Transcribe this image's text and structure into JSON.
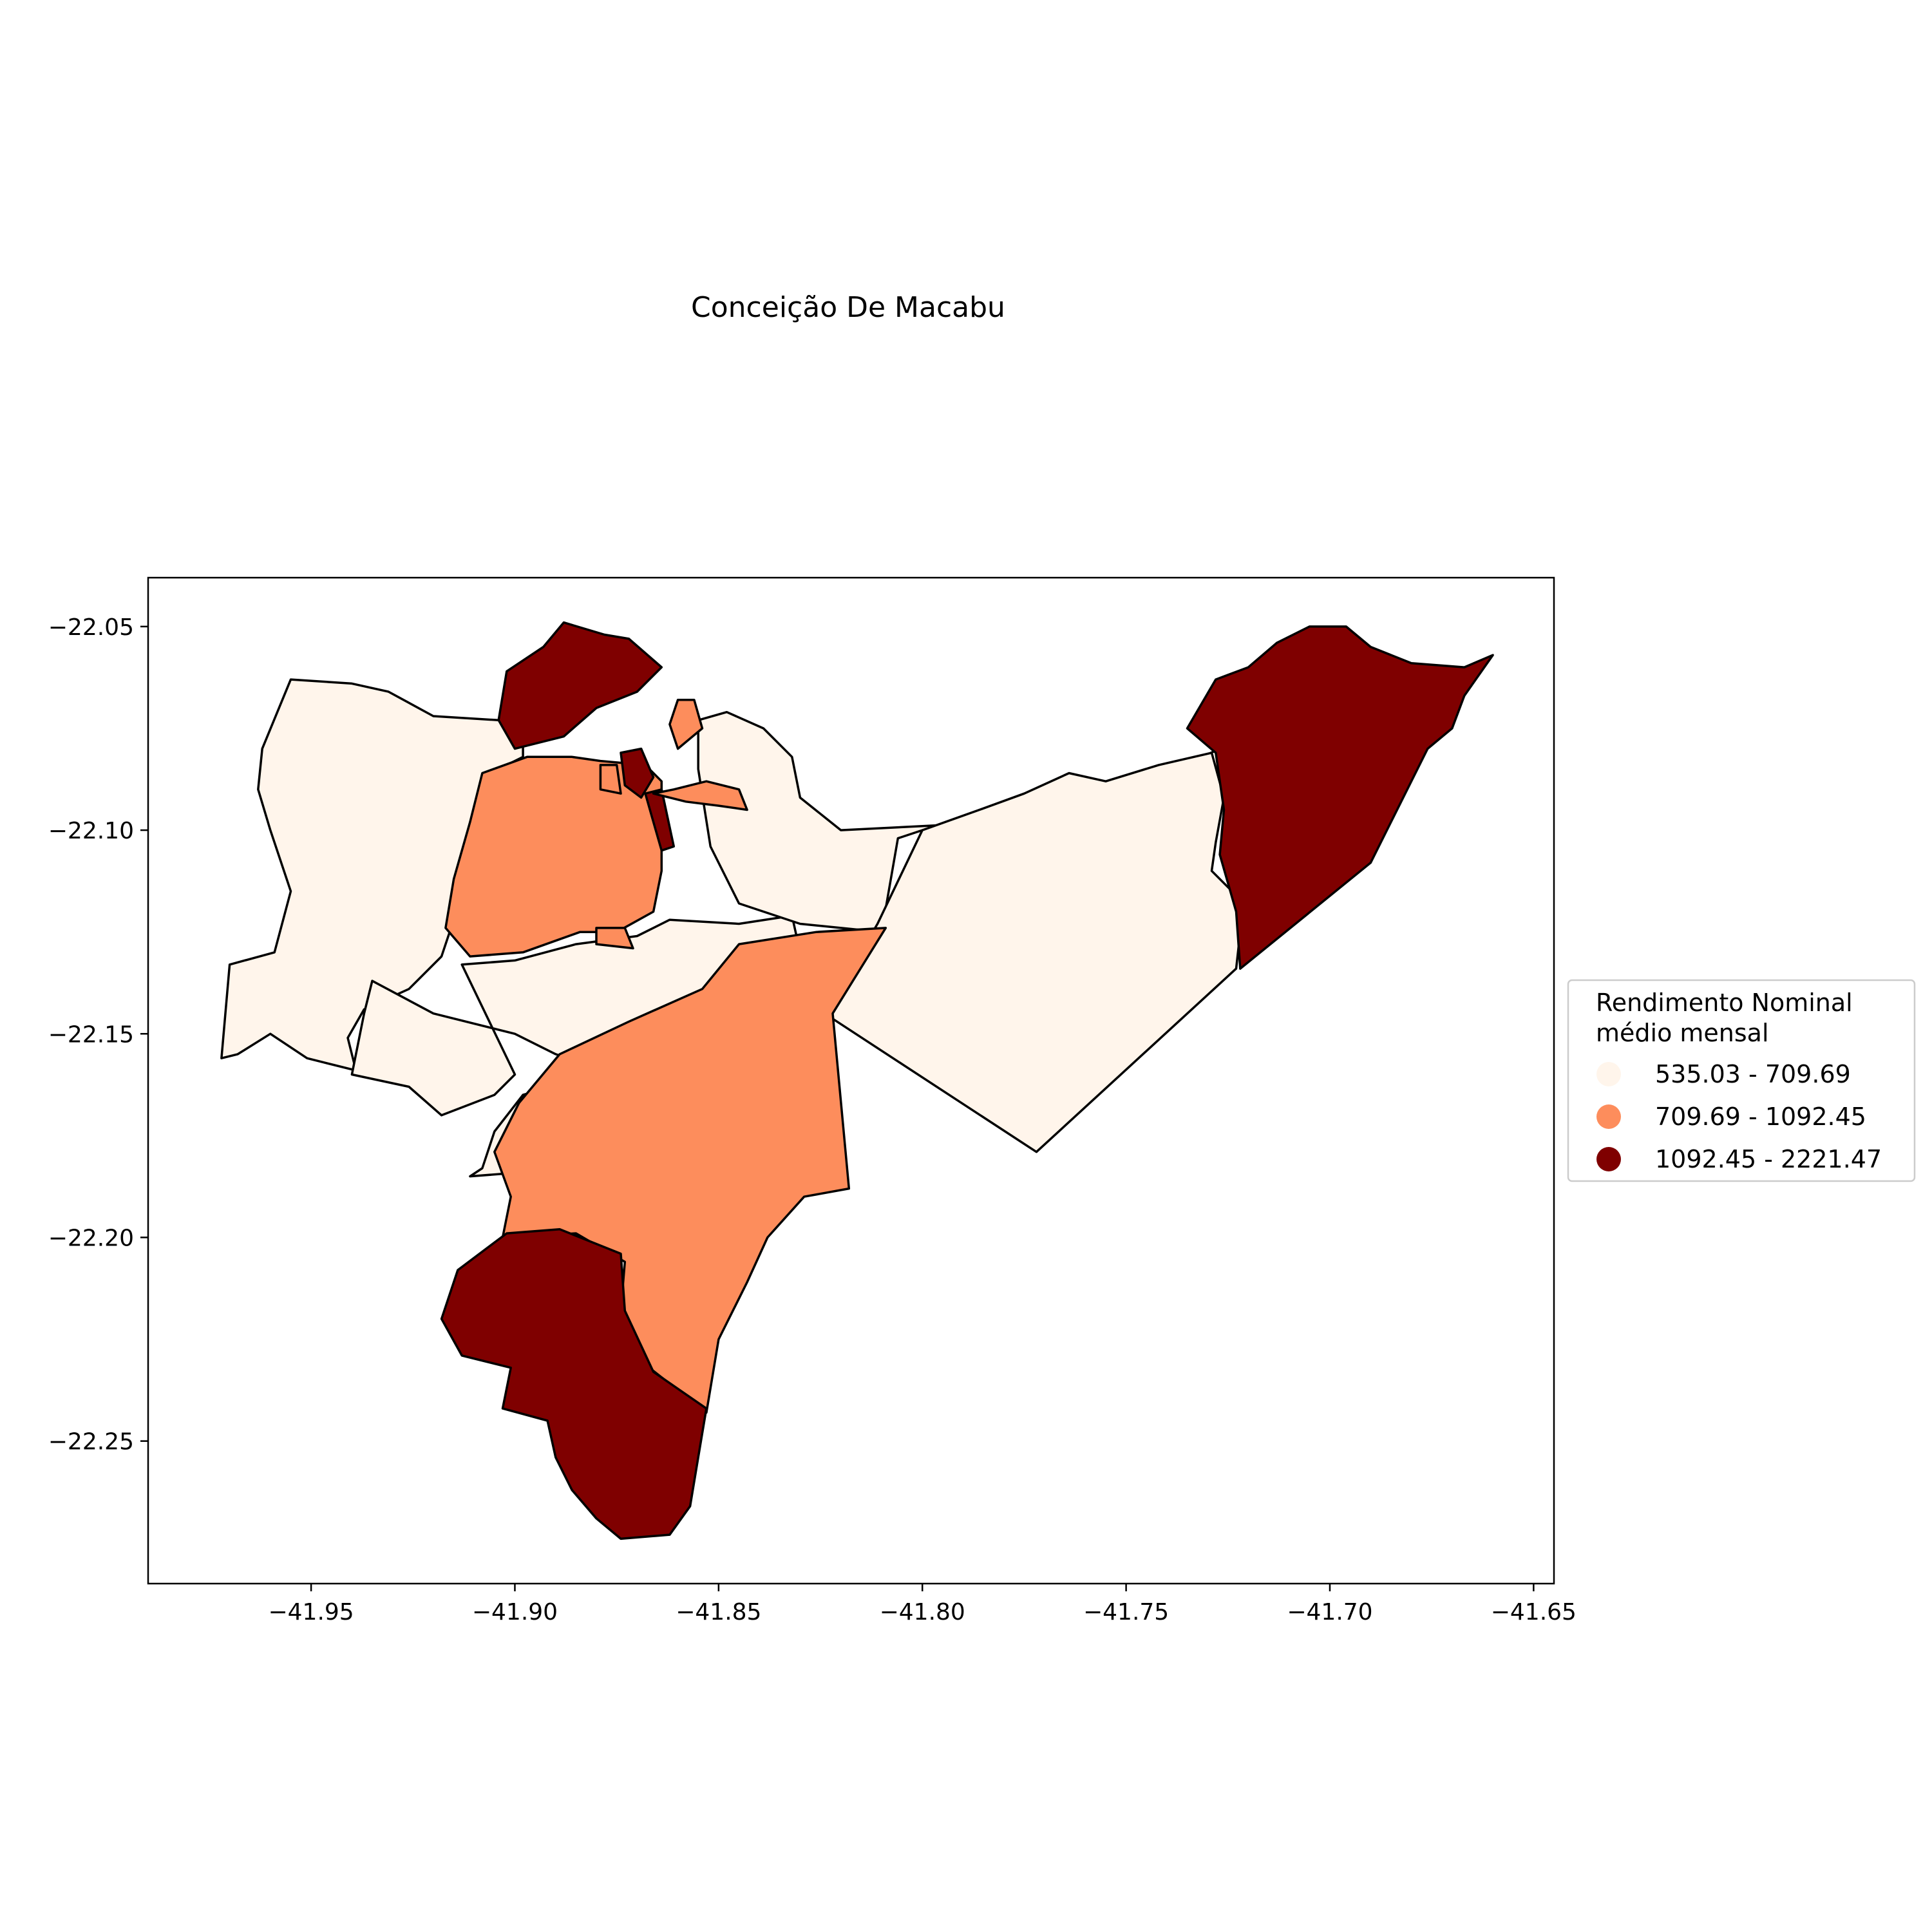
{
  "title": "Conceição De Macabu",
  "legend": {
    "title_line1": "Rendimento Nominal",
    "title_line2": "médio mensal",
    "items": [
      {
        "label": "535.03 - 709.69",
        "color": "#fff5eb"
      },
      {
        "label": "709.69 - 1092.45",
        "color": "#fd8d5c"
      },
      {
        "label": "1092.45 - 2221.47",
        "color": "#7f0000"
      }
    ]
  },
  "chart_data": {
    "type": "choropleth",
    "title": "Conceição De Macabu",
    "xlim": [
      -41.99,
      -41.645
    ],
    "ylim": [
      -22.285,
      -22.038
    ],
    "x_ticks": [
      -41.95,
      -41.9,
      -41.85,
      -41.8,
      -41.75,
      -41.7,
      -41.65
    ],
    "y_ticks": [
      -22.05,
      -22.1,
      -22.15,
      -22.2,
      -22.25
    ],
    "x_tick_labels": [
      "−41.95",
      "−41.90",
      "−41.85",
      "−41.80",
      "−41.75",
      "−41.70",
      "−41.65"
    ],
    "y_tick_labels": [
      "−22.05",
      "−22.10",
      "−22.15",
      "−22.20",
      "−22.25"
    ],
    "legend_placement": "center-right outside",
    "regions": [
      {
        "name": "west-large",
        "class": 0,
        "coords": [
          [
            -41.955,
            -22.063
          ],
          [
            -41.94,
            -22.064
          ],
          [
            -41.931,
            -22.066
          ],
          [
            -41.92,
            -22.072
          ],
          [
            -41.904,
            -22.073
          ],
          [
            -41.898,
            -22.078
          ],
          [
            -41.898,
            -22.082
          ],
          [
            -41.904,
            -22.085
          ],
          [
            -41.91,
            -22.095
          ],
          [
            -41.915,
            -22.122
          ],
          [
            -41.918,
            -22.131
          ],
          [
            -41.926,
            -22.139
          ],
          [
            -41.937,
            -22.144
          ],
          [
            -41.941,
            -22.151
          ],
          [
            -41.939,
            -22.159
          ],
          [
            -41.951,
            -22.156
          ],
          [
            -41.96,
            -22.15
          ],
          [
            -41.968,
            -22.155
          ],
          [
            -41.972,
            -22.156
          ],
          [
            -41.97,
            -22.133
          ],
          [
            -41.959,
            -22.13
          ],
          [
            -41.955,
            -22.115
          ],
          [
            -41.96,
            -22.1
          ],
          [
            -41.963,
            -22.09
          ],
          [
            -41.962,
            -22.08
          ],
          [
            -41.955,
            -22.063
          ]
        ]
      },
      {
        "name": "middle-band",
        "class": 0,
        "coords": [
          [
            -41.913,
            -22.133
          ],
          [
            -41.9,
            -22.132
          ],
          [
            -41.885,
            -22.128
          ],
          [
            -41.87,
            -22.126
          ],
          [
            -41.862,
            -22.122
          ],
          [
            -41.845,
            -22.123
          ],
          [
            -41.832,
            -22.121
          ],
          [
            -41.83,
            -22.13
          ],
          [
            -41.842,
            -22.14
          ],
          [
            -41.86,
            -22.15
          ],
          [
            -41.88,
            -22.16
          ],
          [
            -41.898,
            -22.165
          ],
          [
            -41.905,
            -22.174
          ],
          [
            -41.908,
            -22.183
          ],
          [
            -41.911,
            -22.185
          ],
          [
            -41.898,
            -22.184
          ],
          [
            -41.893,
            -22.174
          ],
          [
            -41.882,
            -22.168
          ],
          [
            -41.878,
            -22.163
          ],
          [
            -41.878,
            -22.16
          ],
          [
            -41.865,
            -22.16
          ],
          [
            -41.857,
            -22.164
          ],
          [
            -41.853,
            -22.167
          ],
          [
            -41.852,
            -22.168
          ],
          [
            -41.86,
            -22.162
          ],
          [
            -41.875,
            -22.16
          ],
          [
            -41.89,
            -22.155
          ],
          [
            -41.9,
            -22.15
          ],
          [
            -41.92,
            -22.145
          ],
          [
            -41.935,
            -22.137
          ],
          [
            -41.937,
            -22.145
          ],
          [
            -41.94,
            -22.16
          ],
          [
            -41.926,
            -22.163
          ],
          [
            -41.918,
            -22.17
          ],
          [
            -41.905,
            -22.165
          ],
          [
            -41.9,
            -22.16
          ],
          [
            -41.913,
            -22.133
          ]
        ]
      },
      {
        "name": "north-east-ridge",
        "class": 0,
        "coords": [
          [
            -41.855,
            -22.073
          ],
          [
            -41.848,
            -22.071
          ],
          [
            -41.839,
            -22.075
          ],
          [
            -41.832,
            -22.082
          ],
          [
            -41.83,
            -22.092
          ],
          [
            -41.82,
            -22.1
          ],
          [
            -41.8,
            -22.099
          ],
          [
            -41.78,
            -22.098
          ],
          [
            -41.765,
            -22.091
          ],
          [
            -41.75,
            -22.093
          ],
          [
            -41.74,
            -22.086
          ],
          [
            -41.727,
            -22.08
          ],
          [
            -41.727,
            -22.09
          ],
          [
            -41.763,
            -22.092
          ],
          [
            -41.772,
            -22.099
          ],
          [
            -41.8,
            -22.1
          ],
          [
            -41.806,
            -22.102
          ],
          [
            -41.81,
            -22.125
          ],
          [
            -41.83,
            -22.123
          ],
          [
            -41.845,
            -22.118
          ],
          [
            -41.852,
            -22.104
          ],
          [
            -41.855,
            -22.085
          ],
          [
            -41.855,
            -22.073
          ]
        ]
      },
      {
        "name": "east-large",
        "class": 0,
        "coords": [
          [
            -41.8,
            -22.1
          ],
          [
            -41.786,
            -22.095
          ],
          [
            -41.775,
            -22.091
          ],
          [
            -41.764,
            -22.086
          ],
          [
            -41.755,
            -22.088
          ],
          [
            -41.742,
            -22.084
          ],
          [
            -41.729,
            -22.081
          ],
          [
            -41.726,
            -22.092
          ],
          [
            -41.728,
            -22.103
          ],
          [
            -41.729,
            -22.11
          ],
          [
            -41.723,
            -22.116
          ],
          [
            -41.722,
            -22.125
          ],
          [
            -41.723,
            -22.134
          ],
          [
            -41.772,
            -22.179
          ],
          [
            -41.824,
            -22.145
          ],
          [
            -41.811,
            -22.123
          ],
          [
            -41.8,
            -22.1
          ]
        ]
      },
      {
        "name": "center-west-orange",
        "class": 1,
        "coords": [
          [
            -41.886,
            -22.082
          ],
          [
            -41.879,
            -22.083
          ],
          [
            -41.868,
            -22.084
          ],
          [
            -41.864,
            -22.088
          ],
          [
            -41.864,
            -22.11
          ],
          [
            -41.866,
            -22.12
          ],
          [
            -41.875,
            -22.125
          ],
          [
            -41.884,
            -22.125
          ],
          [
            -41.898,
            -22.13
          ],
          [
            -41.911,
            -22.131
          ],
          [
            -41.917,
            -22.124
          ],
          [
            -41.915,
            -22.112
          ],
          [
            -41.911,
            -22.098
          ],
          [
            -41.908,
            -22.086
          ],
          [
            -41.897,
            -22.082
          ],
          [
            -41.886,
            -22.082
          ]
        ]
      },
      {
        "name": "south-central-orange",
        "class": 1,
        "coords": [
          [
            -41.809,
            -22.124
          ],
          [
            -41.826,
            -22.125
          ],
          [
            -41.845,
            -22.128
          ],
          [
            -41.854,
            -22.139
          ],
          [
            -41.872,
            -22.147
          ],
          [
            -41.889,
            -22.155
          ],
          [
            -41.899,
            -22.167
          ],
          [
            -41.905,
            -22.179
          ],
          [
            -41.901,
            -22.19
          ],
          [
            -41.903,
            -22.2
          ],
          [
            -41.885,
            -22.199
          ],
          [
            -41.873,
            -22.206
          ],
          [
            -41.874,
            -22.218
          ],
          [
            -41.867,
            -22.232
          ],
          [
            -41.853,
            -22.243
          ],
          [
            -41.85,
            -22.225
          ],
          [
            -41.843,
            -22.211
          ],
          [
            -41.838,
            -22.2
          ],
          [
            -41.829,
            -22.19
          ],
          [
            -41.818,
            -22.188
          ],
          [
            -41.822,
            -22.145
          ],
          [
            -41.809,
            -22.124
          ]
        ]
      },
      {
        "name": "south-dark",
        "class": 2,
        "coords": [
          [
            -41.902,
            -22.199
          ],
          [
            -41.889,
            -22.198
          ],
          [
            -41.874,
            -22.204
          ],
          [
            -41.873,
            -22.218
          ],
          [
            -41.866,
            -22.233
          ],
          [
            -41.853,
            -22.242
          ],
          [
            -41.855,
            -22.254
          ],
          [
            -41.857,
            -22.266
          ],
          [
            -41.862,
            -22.273
          ],
          [
            -41.874,
            -22.274
          ],
          [
            -41.88,
            -22.269
          ],
          [
            -41.886,
            -22.262
          ],
          [
            -41.89,
            -22.254
          ],
          [
            -41.892,
            -22.245
          ],
          [
            -41.903,
            -22.242
          ],
          [
            -41.901,
            -22.232
          ],
          [
            -41.913,
            -22.229
          ],
          [
            -41.918,
            -22.22
          ],
          [
            -41.914,
            -22.208
          ],
          [
            -41.902,
            -22.199
          ]
        ]
      },
      {
        "name": "north-dark",
        "class": 2,
        "coords": [
          [
            -41.888,
            -22.049
          ],
          [
            -41.878,
            -22.052
          ],
          [
            -41.872,
            -22.053
          ],
          [
            -41.864,
            -22.06
          ],
          [
            -41.87,
            -22.066
          ],
          [
            -41.88,
            -22.07
          ],
          [
            -41.888,
            -22.077
          ],
          [
            -41.9,
            -22.08
          ],
          [
            -41.904,
            -22.073
          ],
          [
            -41.902,
            -22.061
          ],
          [
            -41.893,
            -22.055
          ],
          [
            -41.888,
            -22.049
          ]
        ]
      },
      {
        "name": "northeast-dark",
        "class": 2,
        "coords": [
          [
            -41.696,
            -22.05
          ],
          [
            -41.69,
            -22.055
          ],
          [
            -41.68,
            -22.059
          ],
          [
            -41.667,
            -22.06
          ],
          [
            -41.66,
            -22.057
          ],
          [
            -41.667,
            -22.067
          ],
          [
            -41.67,
            -22.075
          ],
          [
            -41.676,
            -22.08
          ],
          [
            -41.69,
            -22.108
          ],
          [
            -41.722,
            -22.134
          ],
          [
            -41.723,
            -22.12
          ],
          [
            -41.727,
            -22.106
          ],
          [
            -41.726,
            -22.095
          ],
          [
            -41.728,
            -22.081
          ],
          [
            -41.735,
            -22.075
          ],
          [
            -41.728,
            -22.063
          ],
          [
            -41.72,
            -22.06
          ],
          [
            -41.713,
            -22.054
          ],
          [
            -41.705,
            -22.05
          ],
          [
            -41.696,
            -22.05
          ]
        ]
      },
      {
        "name": "central-small-1",
        "class": 2,
        "coords": [
          [
            -41.874,
            -22.081
          ],
          [
            -41.869,
            -22.08
          ],
          [
            -41.866,
            -22.087
          ],
          [
            -41.869,
            -22.092
          ],
          [
            -41.873,
            -22.089
          ],
          [
            -41.874,
            -22.081
          ]
        ]
      },
      {
        "name": "central-small-2",
        "class": 2,
        "coords": [
          [
            -41.868,
            -22.091
          ],
          [
            -41.864,
            -22.09
          ],
          [
            -41.861,
            -22.104
          ],
          [
            -41.864,
            -22.105
          ],
          [
            -41.866,
            -22.098
          ],
          [
            -41.868,
            -22.091
          ]
        ]
      },
      {
        "name": "central-small-3",
        "class": 1,
        "coords": [
          [
            -41.86,
            -22.068
          ],
          [
            -41.856,
            -22.068
          ],
          [
            -41.854,
            -22.075
          ],
          [
            -41.86,
            -22.08
          ],
          [
            -41.862,
            -22.074
          ],
          [
            -41.86,
            -22.068
          ]
        ]
      },
      {
        "name": "central-small-4",
        "class": 1,
        "coords": [
          [
            -41.879,
            -22.084
          ],
          [
            -41.875,
            -22.084
          ],
          [
            -41.874,
            -22.091
          ],
          [
            -41.879,
            -22.09
          ],
          [
            -41.879,
            -22.084
          ]
        ]
      },
      {
        "name": "central-small-5",
        "class": 1,
        "coords": [
          [
            -41.866,
            -22.091
          ],
          [
            -41.861,
            -22.09
          ],
          [
            -41.853,
            -22.088
          ],
          [
            -41.845,
            -22.09
          ],
          [
            -41.843,
            -22.095
          ],
          [
            -41.85,
            -22.094
          ],
          [
            -41.858,
            -22.093
          ],
          [
            -41.866,
            -22.091
          ]
        ]
      },
      {
        "name": "central-small-6",
        "class": 1,
        "coords": [
          [
            -41.88,
            -22.124
          ],
          [
            -41.873,
            -22.124
          ],
          [
            -41.871,
            -22.129
          ],
          [
            -41.88,
            -22.128
          ],
          [
            -41.88,
            -22.124
          ]
        ]
      }
    ]
  }
}
